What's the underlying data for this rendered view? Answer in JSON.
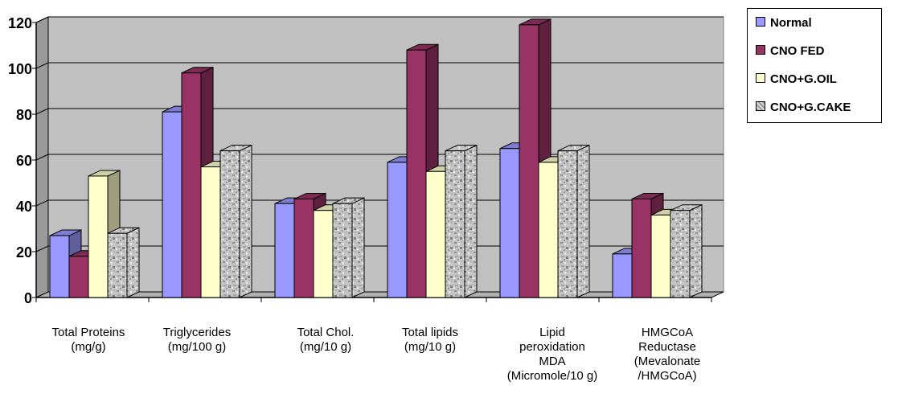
{
  "chart_data": {
    "type": "bar",
    "categories": [
      [
        "Total Proteins",
        "(mg/g)"
      ],
      [
        "Triglycerides",
        "(mg/100 g)"
      ],
      [
        "Total Chol.",
        "(mg/10 g)"
      ],
      [
        "Total lipids",
        "(mg/10 g)"
      ],
      [
        "Lipid",
        "peroxidation",
        "MDA",
        "(Micromole/10 g)"
      ],
      [
        "HMGCoA",
        "Reductase",
        "(Mevalonate",
        "/HMGCoA)"
      ]
    ],
    "series": [
      {
        "name": "Normal",
        "values": [
          27,
          81,
          41,
          59,
          65,
          19
        ],
        "color": "#9999ff"
      },
      {
        "name": "CNO FED",
        "values": [
          18,
          98,
          43,
          108,
          119,
          43
        ],
        "color": "#993366"
      },
      {
        "name": "CNO+G.OIL",
        "values": [
          53,
          57,
          38,
          55,
          59,
          36
        ],
        "color": "#ffffcc"
      },
      {
        "name": "CNO+G.CAKE",
        "values": [
          28,
          64,
          41,
          64,
          64,
          38
        ],
        "color": "#c8c8c8"
      }
    ],
    "y_ticks": [
      "0",
      "20",
      "40",
      "60",
      "80",
      "100",
      "120"
    ],
    "ylim": [
      0,
      120
    ],
    "grid": true,
    "legend_position": "top-right",
    "title": "",
    "xlabel": "",
    "ylabel": ""
  }
}
